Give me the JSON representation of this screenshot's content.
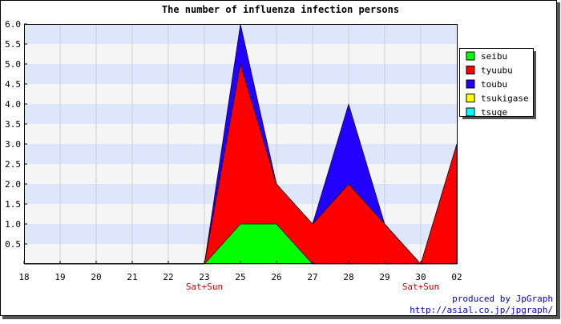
{
  "chart_data": {
    "type": "area",
    "title": "The number of influenza infection persons",
    "xlabel": "",
    "ylabel": "",
    "categories": [
      "18",
      "19",
      "20",
      "21",
      "22",
      "23",
      "25",
      "26",
      "27",
      "28",
      "29",
      "30",
      "02"
    ],
    "category_notes": [
      "",
      "",
      "",
      "",
      "",
      "Sat+Sun",
      "",
      "",
      "",
      "",
      "",
      "Sat+Sun",
      ""
    ],
    "stacked": true,
    "series": [
      {
        "name": "seibu",
        "color": "#00ff00",
        "values": [
          0,
          0,
          0,
          0,
          0,
          0,
          1,
          1,
          0,
          0,
          0,
          0,
          0
        ]
      },
      {
        "name": "tyuubu",
        "color": "#ff0000",
        "values": [
          0,
          0,
          0,
          0,
          0,
          0,
          4,
          1,
          1,
          2,
          1,
          0,
          3
        ]
      },
      {
        "name": "toubu",
        "color": "#2200ff",
        "values": [
          0,
          0,
          0,
          0,
          0,
          0,
          1,
          0,
          0,
          2,
          0,
          0,
          0
        ]
      },
      {
        "name": "tsukigase",
        "color": "#ffff00",
        "values": [
          0,
          0,
          0,
          0,
          0,
          0,
          0,
          0,
          0,
          0,
          0,
          0,
          0
        ]
      },
      {
        "name": "tsuge",
        "color": "#00ffff",
        "values": [
          0,
          0,
          0,
          0,
          0,
          0,
          0,
          0,
          0,
          0,
          0,
          0,
          0
        ]
      }
    ],
    "y_ticks": [
      "0.5",
      "1.0",
      "1.5",
      "2.0",
      "2.5",
      "3.0",
      "3.5",
      "4.0",
      "4.5",
      "5.0",
      "5.5",
      "6.0"
    ],
    "ylim": [
      0,
      6
    ],
    "grid": true,
    "legend_position": "right",
    "band_colors": [
      "#f5f5f5",
      "#dde6fb"
    ],
    "note_color": "#cc0000"
  },
  "footer": {
    "credit": "produced by JpGraph",
    "url": "http://asial.co.jp/jpgraph/",
    "color": "#0000cc"
  }
}
